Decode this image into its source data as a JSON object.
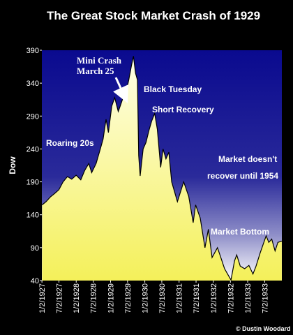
{
  "chart_data": {
    "type": "area",
    "title": "The Great Stock Market Crash of 1929",
    "ylabel": "Dow",
    "xlabel": "",
    "ylim": [
      40,
      390
    ],
    "yticks": [
      40,
      90,
      140,
      190,
      240,
      290,
      340,
      390
    ],
    "xticks": [
      "1/2/1927",
      "7/2/1927",
      "1/2/1928",
      "7/2/1928",
      "1/2/1929",
      "7/2/1929",
      "1/2/1930",
      "7/2/1930",
      "1/2/1931",
      "7/2/1931",
      "1/2/1932",
      "7/2/1932",
      "1/2/1933",
      "7/2/1933"
    ],
    "series": [
      {
        "values": [
          {
            "x": "1927-01-03",
            "y": 155
          },
          {
            "x": "1927-02-15",
            "y": 160
          },
          {
            "x": "1927-04-01",
            "y": 167
          },
          {
            "x": "1927-05-15",
            "y": 172
          },
          {
            "x": "1927-07-01",
            "y": 178
          },
          {
            "x": "1927-08-15",
            "y": 190
          },
          {
            "x": "1927-10-01",
            "y": 198
          },
          {
            "x": "1927-11-15",
            "y": 194
          },
          {
            "x": "1928-01-02",
            "y": 200
          },
          {
            "x": "1928-02-20",
            "y": 193
          },
          {
            "x": "1928-04-01",
            "y": 207
          },
          {
            "x": "1928-05-15",
            "y": 218
          },
          {
            "x": "1928-06-15",
            "y": 204
          },
          {
            "x": "1928-08-01",
            "y": 218
          },
          {
            "x": "1928-09-15",
            "y": 240
          },
          {
            "x": "1928-10-15",
            "y": 255
          },
          {
            "x": "1928-11-15",
            "y": 285
          },
          {
            "x": "1928-12-10",
            "y": 265
          },
          {
            "x": "1929-01-15",
            "y": 305
          },
          {
            "x": "1929-02-15",
            "y": 318
          },
          {
            "x": "1929-03-25",
            "y": 297
          },
          {
            "x": "1929-04-15",
            "y": 305
          },
          {
            "x": "1929-05-15",
            "y": 318
          },
          {
            "x": "1929-06-15",
            "y": 325
          },
          {
            "x": "1929-07-15",
            "y": 345
          },
          {
            "x": "1929-08-15",
            "y": 368
          },
          {
            "x": "1929-09-03",
            "y": 381
          },
          {
            "x": "1929-09-25",
            "y": 355
          },
          {
            "x": "1929-10-15",
            "y": 345
          },
          {
            "x": "1929-10-29",
            "y": 230
          },
          {
            "x": "1929-11-13",
            "y": 199
          },
          {
            "x": "1929-12-15",
            "y": 240
          },
          {
            "x": "1930-01-15",
            "y": 250
          },
          {
            "x": "1930-02-15",
            "y": 268
          },
          {
            "x": "1930-03-15",
            "y": 282
          },
          {
            "x": "1930-04-17",
            "y": 294
          },
          {
            "x": "1930-05-15",
            "y": 270
          },
          {
            "x": "1930-06-20",
            "y": 212
          },
          {
            "x": "1930-07-15",
            "y": 240
          },
          {
            "x": "1930-08-15",
            "y": 225
          },
          {
            "x": "1930-09-15",
            "y": 235
          },
          {
            "x": "1930-10-15",
            "y": 190
          },
          {
            "x": "1930-12-15",
            "y": 160
          },
          {
            "x": "1931-02-20",
            "y": 190
          },
          {
            "x": "1931-04-15",
            "y": 168
          },
          {
            "x": "1931-06-01",
            "y": 128
          },
          {
            "x": "1931-06-27",
            "y": 155
          },
          {
            "x": "1931-08-15",
            "y": 135
          },
          {
            "x": "1931-10-05",
            "y": 90
          },
          {
            "x": "1931-11-10",
            "y": 118
          },
          {
            "x": "1931-12-20",
            "y": 75
          },
          {
            "x": "1932-02-15",
            "y": 90
          },
          {
            "x": "1932-03-15",
            "y": 78
          },
          {
            "x": "1932-05-01",
            "y": 58
          },
          {
            "x": "1932-07-08",
            "y": 41
          },
          {
            "x": "1932-08-15",
            "y": 70
          },
          {
            "x": "1932-09-07",
            "y": 79
          },
          {
            "x": "1932-10-15",
            "y": 62
          },
          {
            "x": "1932-12-01",
            "y": 58
          },
          {
            "x": "1933-01-15",
            "y": 63
          },
          {
            "x": "1933-02-27",
            "y": 50
          },
          {
            "x": "1933-04-01",
            "y": 62
          },
          {
            "x": "1933-05-15",
            "y": 82
          },
          {
            "x": "1933-07-18",
            "y": 108
          },
          {
            "x": "1933-08-15",
            "y": 98
          },
          {
            "x": "1933-09-15",
            "y": 103
          },
          {
            "x": "1933-10-21",
            "y": 85
          },
          {
            "x": "1933-11-20",
            "y": 98
          },
          {
            "x": "1933-12-31",
            "y": 100
          }
        ]
      }
    ],
    "annotations": [
      {
        "text": "Roaring 20s"
      },
      {
        "text": "Mini Crash"
      },
      {
        "text": "March 25"
      },
      {
        "text": "Black Tuesday"
      },
      {
        "text": "Short Recovery"
      },
      {
        "text": "Market doesn't"
      },
      {
        "text": "recover until 1954"
      },
      {
        "text": "Market Bottom"
      }
    ],
    "credit": "© Dustin Woodard",
    "colors": {
      "background_top": "#0a0a8f",
      "background_bottom": "#ffffff",
      "area_top": "#ffffe8",
      "area_bottom": "#f4f05a",
      "outline": "#000000"
    }
  }
}
